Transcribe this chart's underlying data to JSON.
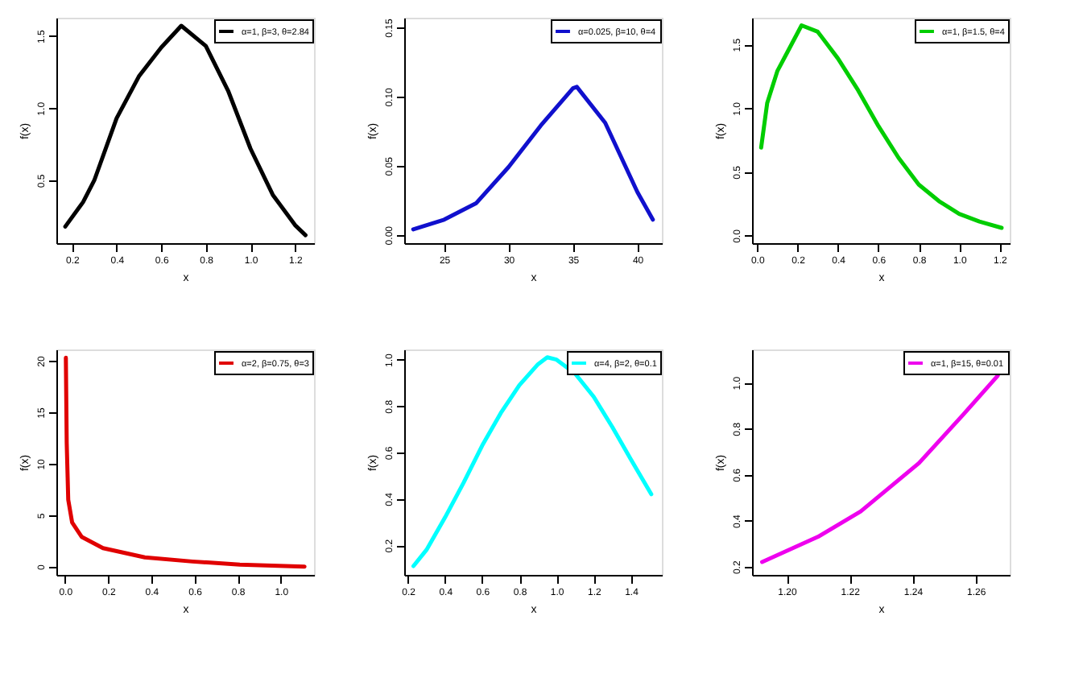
{
  "chart_data": [
    {
      "type": "line",
      "xlabel": "x",
      "ylabel": "f(x)",
      "xlim": [
        0.13,
        1.285
      ],
      "ylim": [
        0.065,
        1.626
      ],
      "xticks": [
        0.2,
        0.4,
        0.6,
        0.8,
        {
          "value": 1.0,
          "label": "1.0"
        },
        1.2
      ],
      "yticks": [
        0.5,
        {
          "value": 1.0,
          "label": "1.0"
        },
        1.5
      ],
      "legend": "top right",
      "line_style": "solid",
      "series": [
        {
          "name": "α=1, β=3, θ=2.84",
          "color": "#000000",
          "x": [
            0.17,
            0.25,
            0.3,
            0.4,
            0.5,
            0.6,
            0.69,
            0.8,
            0.9,
            1.0,
            1.1,
            1.2,
            1.247
          ],
          "values": [
            0.18,
            0.35,
            0.5,
            0.93,
            1.22,
            1.42,
            1.57,
            1.43,
            1.12,
            0.72,
            0.4,
            0.19,
            0.12
          ]
        }
      ]
    },
    {
      "type": "line",
      "xlabel": "x",
      "ylabel": "f(x)",
      "xlim": [
        21.9,
        41.9
      ],
      "ylim": [
        -0.006,
        0.157
      ],
      "xticks": [
        25,
        30,
        35,
        40
      ],
      "yticks": [
        {
          "value": 0,
          "label": "0.00"
        },
        0.05,
        {
          "value": 0.1,
          "label": "0.10"
        },
        0.15
      ],
      "legend": "top right",
      "line_style": "solid",
      "series": [
        {
          "name": "α=0.025, β=10, θ=4",
          "color": "#1010cd",
          "x": [
            22.6,
            25,
            27.5,
            30,
            32.5,
            35,
            35.3,
            37.5,
            40,
            41.2
          ],
          "values": [
            0.004,
            0.011,
            0.023,
            0.049,
            0.079,
            0.106,
            0.107,
            0.081,
            0.031,
            0.011
          ]
        }
      ]
    },
    {
      "type": "line",
      "xlabel": "x",
      "ylabel": "f(x)",
      "xlim": [
        -0.025,
        1.25
      ],
      "ylim": [
        -0.06,
        1.71
      ],
      "xticks": [
        {
          "value": 0,
          "label": "0.0"
        },
        0.2,
        0.4,
        0.6,
        0.8,
        {
          "value": 1.0,
          "label": "1.0"
        },
        1.2
      ],
      "yticks": [
        {
          "value": 0,
          "label": "0.0"
        },
        0.5,
        {
          "value": 1.0,
          "label": "1.0"
        },
        1.5
      ],
      "legend": "top right",
      "line_style": "solid",
      "series": [
        {
          "name": "α=1, β=1.5, θ=4",
          "color": "#00cd00",
          "x": [
            0.02,
            0.05,
            0.1,
            0.15,
            0.22,
            0.3,
            0.4,
            0.5,
            0.6,
            0.7,
            0.8,
            0.9,
            1.0,
            1.1,
            1.21
          ],
          "values": [
            0.69,
            1.04,
            1.29,
            1.44,
            1.65,
            1.6,
            1.39,
            1.14,
            0.86,
            0.61,
            0.4,
            0.27,
            0.17,
            0.11,
            0.06
          ]
        }
      ]
    },
    {
      "type": "line",
      "xlabel": "x",
      "ylabel": "f(x)",
      "xlim": [
        -0.04,
        1.154
      ],
      "ylim": [
        -0.8,
        21.1
      ],
      "xticks": [
        {
          "value": 0,
          "label": "0.0"
        },
        0.2,
        0.4,
        0.6,
        0.8,
        {
          "value": 1.0,
          "label": "1.0"
        }
      ],
      "yticks": [
        0,
        5,
        10,
        15,
        20
      ],
      "legend": "top right",
      "line_style": "solid",
      "series": [
        {
          "name": "α=2, β=0.75, θ=3",
          "color": "#e00000",
          "x": [
            0.004,
            0.008,
            0.015,
            0.033,
            0.077,
            0.176,
            0.37,
            0.59,
            0.81,
            1.11
          ],
          "values": [
            20.3,
            12,
            6.5,
            4.3,
            2.9,
            1.8,
            0.9,
            0.5,
            0.2,
            0.0
          ]
        }
      ]
    },
    {
      "type": "line",
      "xlabel": "x",
      "ylabel": "f(x)",
      "xlim": [
        0.18,
        1.567
      ],
      "ylim": [
        0.072,
        1.044
      ],
      "xticks": [
        0.2,
        0.4,
        0.6,
        0.8,
        {
          "value": 1.0,
          "label": "1.0"
        },
        1.2,
        1.4
      ],
      "yticks": [
        0.2,
        0.4,
        0.6,
        0.8,
        {
          "value": 1.0,
          "label": "1.0"
        }
      ],
      "legend": "top right",
      "line_style": "solid",
      "series": [
        {
          "name": "α=4, β=2, θ=0.1",
          "color": "#00ffff",
          "x": [
            0.23,
            0.3,
            0.4,
            0.5,
            0.6,
            0.7,
            0.8,
            0.9,
            0.95,
            1.0,
            1.1,
            1.2,
            1.3,
            1.4,
            1.51
          ],
          "values": [
            0.11,
            0.18,
            0.32,
            0.47,
            0.63,
            0.77,
            0.89,
            0.98,
            1.01,
            1.0,
            0.94,
            0.84,
            0.71,
            0.57,
            0.42
          ]
        }
      ]
    },
    {
      "type": "line",
      "xlabel": "x",
      "ylabel": "f(x)",
      "xlim": [
        1.189,
        1.2708
      ],
      "ylim": [
        0.164,
        1.144
      ],
      "xticks": [
        {
          "value": 1.2,
          "label": "1.20"
        },
        1.22,
        1.24,
        1.26
      ],
      "yticks": [
        0.2,
        0.4,
        0.6,
        0.8,
        {
          "value": 1.0,
          "label": "1.0"
        }
      ],
      "legend": "top right",
      "line_style": "solid",
      "series": [
        {
          "name": "α=1, β=15, θ=0.01",
          "color": "#ee00ee",
          "x": [
            1.1922,
            1.21,
            1.2235,
            1.242,
            1.256,
            1.267
          ],
          "values": [
            0.22,
            0.33,
            0.44,
            0.65,
            0.86,
            1.03
          ]
        }
      ]
    }
  ]
}
